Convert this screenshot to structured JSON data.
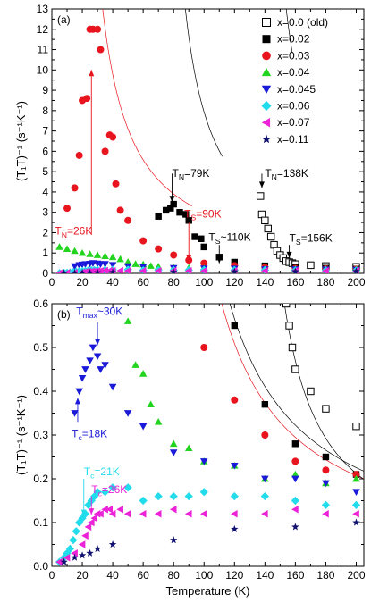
{
  "chart_data": [
    {
      "type": "scatter",
      "panel_label": "(a)",
      "ylabel": "(T₁T)⁻¹ (s⁻¹K⁻¹)",
      "xlim": [
        0,
        205
      ],
      "ylim": [
        0,
        13
      ],
      "x_ticks": [
        0,
        20,
        40,
        60,
        80,
        100,
        120,
        140,
        160,
        180,
        200
      ],
      "y_ticks": [
        0,
        1,
        2,
        3,
        4,
        5,
        6,
        7,
        8,
        9,
        10,
        11,
        12,
        13
      ],
      "legend_position": "top-right",
      "series": [
        {
          "name": "x=0.0 (old)",
          "marker": "open-square",
          "color": "#000000",
          "x": [
            137,
            138,
            140,
            142,
            144,
            146,
            148,
            150,
            152,
            154,
            156,
            158,
            160,
            170,
            180,
            200
          ],
          "y": [
            3.8,
            2.9,
            2.6,
            2.2,
            1.8,
            1.4,
            1.1,
            0.9,
            0.75,
            0.6,
            0.55,
            0.5,
            0.45,
            0.4,
            0.36,
            0.32
          ]
        },
        {
          "name": "x=0.02",
          "marker": "filled-square",
          "color": "#000000",
          "x": [
            70,
            75,
            78,
            80,
            84,
            88,
            90,
            94,
            98,
            100,
            110,
            120,
            140,
            160,
            180,
            200
          ],
          "y": [
            2.8,
            3.1,
            3.2,
            3.4,
            3.0,
            2.9,
            2.6,
            1.8,
            1.7,
            1.3,
            0.8,
            0.55,
            0.37,
            0.28,
            0.25,
            0.21
          ]
        },
        {
          "name": "x=0.03",
          "marker": "circle",
          "color": "#e8141e",
          "x": [
            10,
            15,
            18,
            20,
            23,
            25,
            27,
            30,
            32,
            35,
            38,
            40,
            42,
            45,
            50,
            60,
            70,
            80,
            90,
            100,
            120,
            140,
            160,
            180,
            200
          ],
          "y": [
            3.2,
            4.2,
            5.8,
            8.5,
            8.6,
            12.0,
            12.0,
            12.0,
            11.0,
            6.0,
            6.8,
            6.7,
            4.4,
            3.1,
            2.6,
            1.6,
            1.2,
            0.9,
            0.65,
            0.5,
            0.38,
            0.3,
            0.24,
            0.22,
            0.21
          ]
        },
        {
          "name": "x=0.04",
          "marker": "triangle-up",
          "color": "#22d41e",
          "x": [
            5,
            10,
            15,
            20,
            25,
            30,
            35,
            40,
            45,
            50,
            55,
            60,
            65,
            70,
            80,
            90,
            100,
            120,
            140,
            160,
            180,
            200
          ],
          "y": [
            1.3,
            1.2,
            1.1,
            1.0,
            0.95,
            0.9,
            0.85,
            0.8,
            0.7,
            0.56,
            0.46,
            0.44,
            0.37,
            0.33,
            0.28,
            0.27,
            0.24,
            0.23,
            0.2,
            0.21,
            0.19,
            0.2
          ]
        },
        {
          "name": "x=0.045",
          "marker": "triangle-down",
          "color": "#1a1ad8",
          "x": [
            15,
            18,
            20,
            22,
            25,
            27,
            30,
            32,
            35,
            40,
            50,
            60,
            80,
            100,
            120,
            140,
            160,
            180,
            200
          ],
          "y": [
            0.35,
            0.4,
            0.43,
            0.45,
            0.47,
            0.5,
            0.48,
            0.45,
            0.46,
            0.41,
            0.35,
            0.32,
            0.26,
            0.24,
            0.23,
            0.2,
            0.2,
            0.19,
            0.17
          ]
        },
        {
          "name": "x=0.06",
          "marker": "diamond",
          "color": "#22dcec",
          "x": [
            5,
            8,
            10,
            12,
            14,
            16,
            18,
            20,
            22,
            24,
            26,
            28,
            30,
            35,
            40,
            50,
            60,
            70,
            80,
            90,
            100,
            120,
            140,
            160,
            180,
            200
          ],
          "y": [
            0.01,
            0.02,
            0.03,
            0.04,
            0.06,
            0.08,
            0.1,
            0.11,
            0.12,
            0.14,
            0.15,
            0.16,
            0.17,
            0.17,
            0.18,
            0.18,
            0.15,
            0.16,
            0.16,
            0.16,
            0.17,
            0.16,
            0.16,
            0.15,
            0.14,
            0.14
          ]
        },
        {
          "name": "x=0.07",
          "marker": "triangle-left",
          "color": "#ec22d8",
          "x": [
            5,
            10,
            15,
            20,
            22,
            24,
            26,
            28,
            30,
            32,
            35,
            38,
            40,
            45,
            50,
            60,
            70,
            80,
            90,
            100,
            120,
            140,
            160,
            180,
            200
          ],
          "y": [
            0.01,
            0.02,
            0.03,
            0.05,
            0.07,
            0.09,
            0.1,
            0.11,
            0.12,
            0.12,
            0.13,
            0.13,
            0.12,
            0.13,
            0.12,
            0.12,
            0.12,
            0.13,
            0.12,
            0.12,
            0.12,
            0.12,
            0.13,
            0.12,
            0.12
          ]
        },
        {
          "name": "x=0.11",
          "marker": "star",
          "color": "#101070",
          "x": [
            8,
            15,
            20,
            25,
            30,
            40,
            80,
            120,
            160,
            200
          ],
          "y": [
            0.01,
            0.02,
            0.025,
            0.03,
            0.04,
            0.05,
            0.06,
            0.085,
            0.09,
            0.1
          ]
        }
      ],
      "annotations": [
        {
          "text": "T_N=26K",
          "color": "#e8141e",
          "x": 2,
          "y": 1.9,
          "arrow_from": [
            26,
            1.9
          ],
          "arrow_to": [
            26,
            10.0
          ]
        },
        {
          "text": "T_N=79K",
          "color": "#000000",
          "x": 79,
          "y": 4.75,
          "arrow_from": [
            79,
            4.9
          ],
          "arrow_to": [
            79,
            3.5
          ]
        },
        {
          "text": "T_S=90K",
          "color": "#e8141e",
          "x": 87,
          "y": 2.75,
          "arrow_from": [
            90,
            2.5
          ],
          "arrow_to": [
            90,
            0.6
          ]
        },
        {
          "text": "T_S~110K",
          "color": "#000000",
          "x": 103,
          "y": 1.6,
          "arrow_from": [
            110,
            1.4
          ],
          "arrow_to": [
            110,
            0.5
          ]
        },
        {
          "text": "T_N=138K",
          "color": "#000000",
          "x": 140,
          "y": 4.75,
          "arrow_from": [
            138,
            4.9
          ],
          "arrow_to": [
            138,
            4.2
          ]
        },
        {
          "text": "T_S=156K",
          "color": "#000000",
          "x": 156,
          "y": 1.55,
          "arrow_from": [
            156,
            1.4
          ],
          "arrow_to": [
            156,
            0.75
          ]
        }
      ]
    },
    {
      "type": "scatter",
      "panel_label": "(b)",
      "xlabel": "Temperature (K)",
      "ylabel": "(T₁T)⁻¹ (s⁻¹K⁻¹)",
      "xlim": [
        0,
        205
      ],
      "ylim": [
        0,
        0.6
      ],
      "x_ticks": [
        0,
        20,
        40,
        60,
        80,
        100,
        120,
        140,
        160,
        180,
        200
      ],
      "y_ticks": [
        0.0,
        0.1,
        0.2,
        0.3,
        0.4,
        0.5,
        0.6
      ],
      "annotations": [
        {
          "text": "T_max~30K",
          "color": "#1a1ad8",
          "x": 16,
          "y": 0.574,
          "arrow_from": [
            30,
            0.558
          ],
          "arrow_to": [
            30,
            0.505
          ]
        },
        {
          "text": "T_c=18K",
          "color": "#1a1ad8",
          "x": 13,
          "y": 0.295,
          "arrow_from": [
            17,
            0.33
          ],
          "arrow_to": [
            17,
            0.385
          ]
        },
        {
          "text": "T_c=21K",
          "color": "#22dcec",
          "x": 21,
          "y": 0.208,
          "arrow_from": [
            21,
            0.2
          ],
          "arrow_to": [
            21,
            0.115
          ]
        },
        {
          "text": "T_c=26K",
          "color": "#ec22d8",
          "x": 26,
          "y": 0.167,
          "arrow_from": [
            26,
            0.16
          ],
          "arrow_to": [
            26,
            0.118
          ]
        }
      ]
    }
  ]
}
